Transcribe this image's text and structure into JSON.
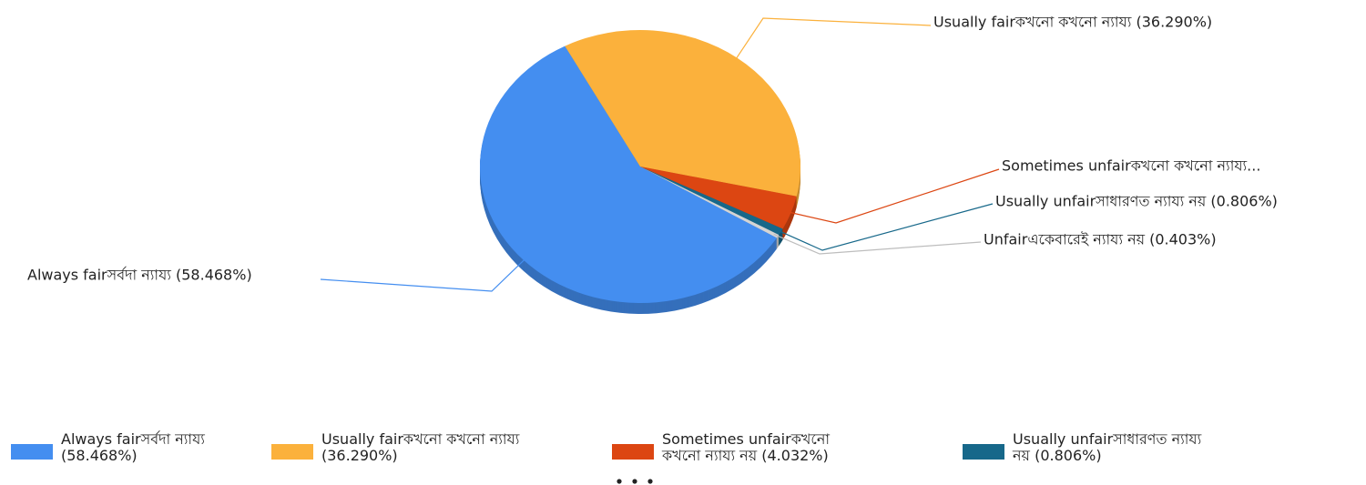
{
  "chart_data": {
    "type": "pie",
    "categories": [
      "Always fairসর্বদা ন্যায্য",
      "Usually fairকখনো কখনো ন্যায্য",
      "Sometimes unfairকখনো কখনো ন্যায্য নয়",
      "Usually unfairসাধারণত ন্যায্য নয়",
      "Unfairএকেবারেই ন্যায্য নয়"
    ],
    "values": [
      58.468,
      36.29,
      4.032,
      0.806,
      0.403
    ],
    "value_labels": [
      "(58.468%)",
      "(36.290%)",
      "(4.032%)",
      "(0.806%)",
      "(0.403%)"
    ],
    "callouts": [
      "Always fairসর্বদা ন্যায্য (58.468%)",
      "Usually fairকখনো কখনো ন্যায্য (36.290%)",
      "Sometimes unfairকখনো কখনো ন্যায্য...",
      "Usually unfairসাধারণত ন্যায্য নয় (0.806%)",
      "Unfairএকেবারেই ন্যায্য নয় (0.403%)"
    ],
    "colors": [
      "#448ef0",
      "#fbb13c",
      "#dc4612",
      "#17688a",
      "#d4d4d4"
    ],
    "legend": "bottom"
  }
}
